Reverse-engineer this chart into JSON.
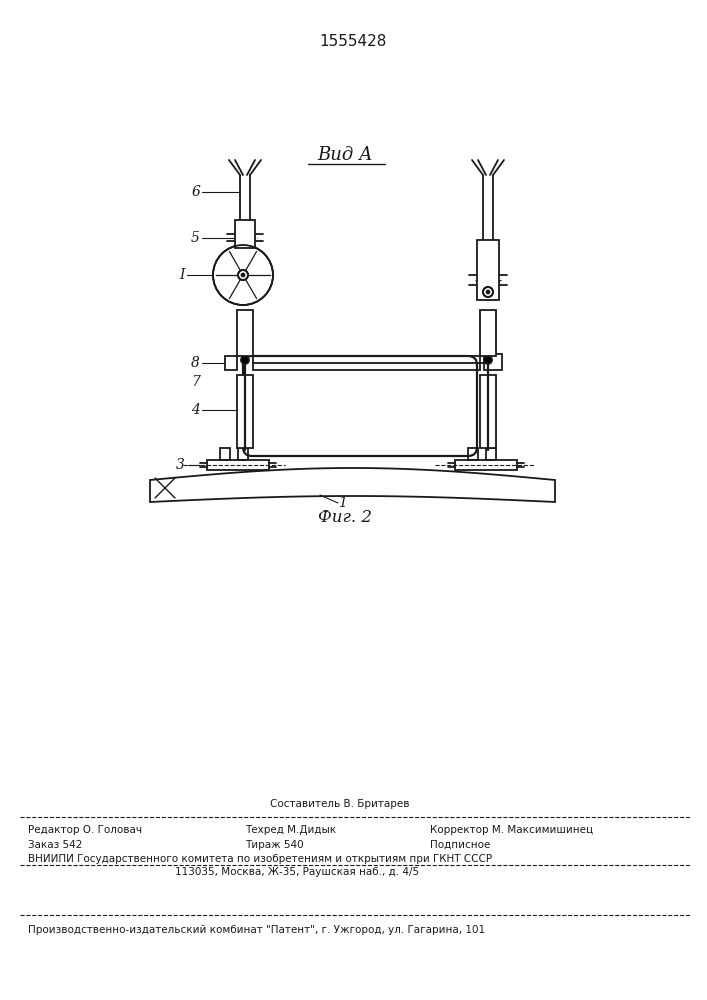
{
  "patent_number": "1555428",
  "title_view": "Вид А",
  "caption": "Фиг. 2",
  "bg_color": "#ffffff",
  "line_color": "#1a1a1a",
  "footer_lines": {
    "sestavitel": "Составитель В. Бритарев",
    "redaktor": "Редактор О. Головач",
    "tehred": "Техред М.Дидык",
    "korrektor": "Корректор М. Максимишинец",
    "zakaz": "Заказ 542",
    "tirazh": "Тираж 540",
    "podpisnoe": "Подписное",
    "vniipи": "ВНИИПИ Государственного комитета по изобретениям и открытиям при ГКНТ СССР",
    "address": "113035, Москва, Ж-35, Раушская наб., д. 4/5",
    "publisher": "Производственно-издательский комбинат \"Патент\", г. Ужгород, ул. Гагарина, 101"
  }
}
